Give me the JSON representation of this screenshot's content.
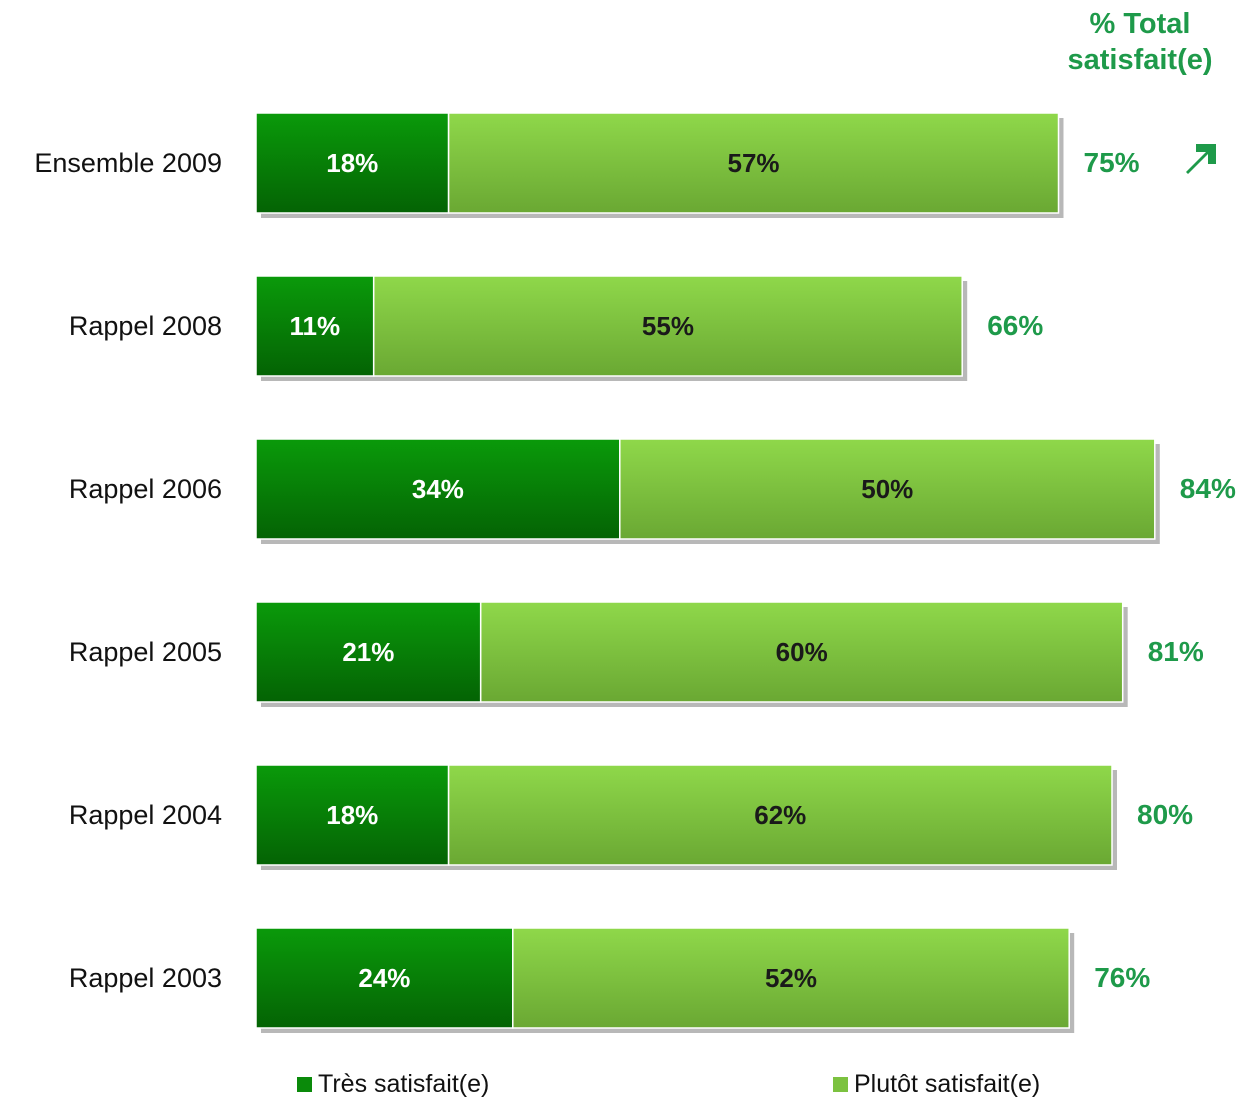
{
  "header": {
    "line1": "% Total",
    "line2": "satisfait(e)"
  },
  "trend_icon": "up-right-arrow-icon",
  "colors": {
    "tres_top": "#0a9a0a",
    "tres_bottom": "#046304",
    "plutot_top": "#8fd84a",
    "plutot_bottom": "#6aa833",
    "total_text": "#1e9a4a",
    "seg_text_light": "#ffffff",
    "seg_text_dark": "#1a1a1a"
  },
  "legend": [
    {
      "label": "Très satisfait(e)",
      "color": "#0a8a0a"
    },
    {
      "label": "Plutôt satisfait(e)",
      "color": "#7cc240"
    }
  ],
  "chart_data": {
    "type": "bar",
    "orientation": "horizontal",
    "stacked": true,
    "categories": [
      "Ensemble 2009",
      "Rappel 2008",
      "Rappel 2006",
      "Rappel 2005",
      "Rappel 2004",
      "Rappel 2003"
    ],
    "series": [
      {
        "name": "Très satisfait(e)",
        "values": [
          18,
          11,
          34,
          21,
          18,
          24
        ],
        "labels": [
          "18%",
          "11%",
          "34%",
          "21%",
          "18%",
          "24%"
        ]
      },
      {
        "name": "Plutôt satisfait(e)",
        "values": [
          57,
          55,
          50,
          60,
          62,
          52
        ],
        "labels": [
          "57%",
          "55%",
          "50%",
          "60%",
          "62%",
          "52%"
        ]
      }
    ],
    "totals": [
      75,
      66,
      84,
      81,
      80,
      76
    ],
    "total_labels": [
      "75%",
      "66%",
      "84%",
      "81%",
      "80%",
      "76%"
    ],
    "xlim": [
      0,
      84
    ],
    "legend_position": "bottom",
    "grid": false
  }
}
